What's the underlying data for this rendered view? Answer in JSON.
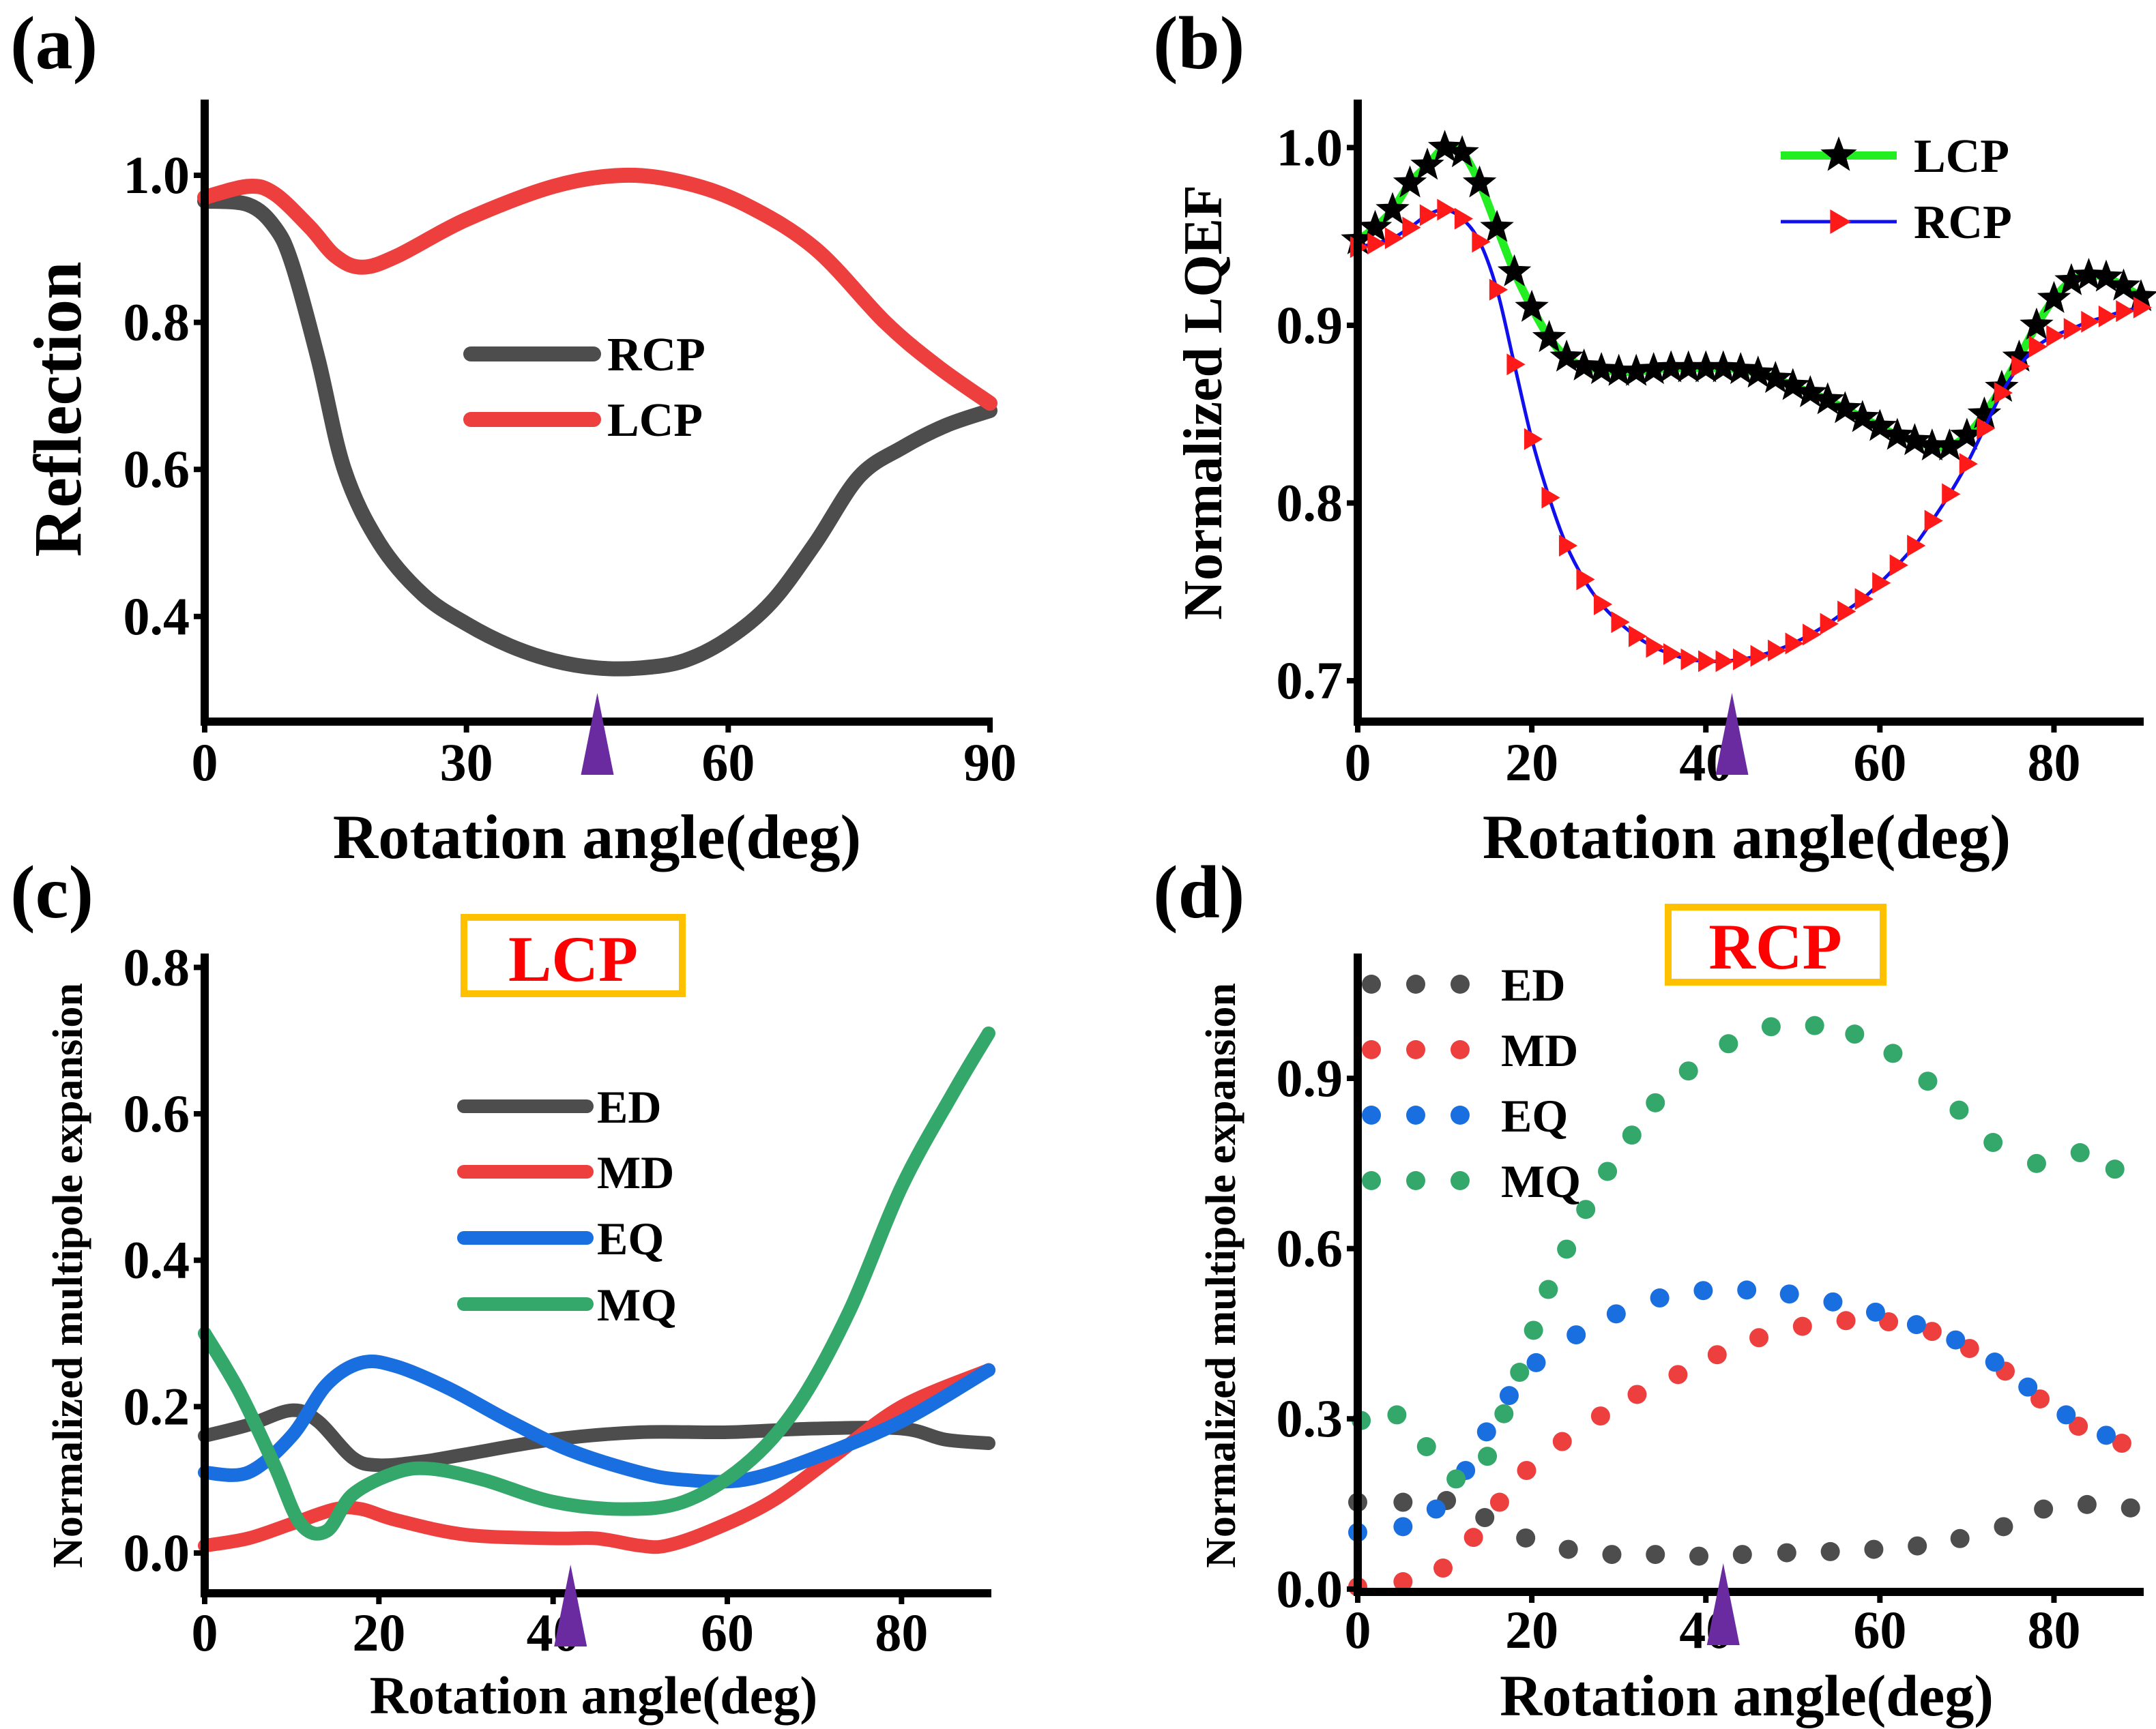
{
  "colors": {
    "gray": "#4d4d4d",
    "red": "#ee3f3f",
    "blue": "#1a6fe0",
    "green": "#34a86a",
    "lime": "#22ee22",
    "rcp_line_b": "#1010ee",
    "marker_red": "#ff1a1a",
    "arrow": "#6a2aa0",
    "box": "#ffc000",
    "box_text": "#ff0000"
  },
  "chart_data": [
    {
      "panel": "(a)",
      "type": "line",
      "xlabel": "Rotation angle(deg)",
      "ylabel": "Reflection",
      "xlim": [
        0,
        90
      ],
      "ylim": [
        0.257,
        1.103
      ],
      "xticks": [
        0,
        30,
        60,
        90
      ],
      "yticks": [
        0.4,
        0.6,
        0.8,
        1.0
      ],
      "xtick_labels": [
        "0",
        "30",
        "60",
        "90"
      ],
      "ytick_labels": [
        "0.4",
        "0.6",
        "0.8",
        "1.0"
      ],
      "legend_position": "center",
      "marker_angle": 45,
      "series": [
        {
          "name": "RCP",
          "color": "#4d4d4d",
          "x": [
            0,
            5,
            8,
            10,
            13,
            16,
            20,
            25,
            30,
            35,
            40,
            45,
            50,
            55,
            60,
            65,
            70,
            75,
            80,
            85,
            90
          ],
          "y": [
            0.965,
            0.96,
            0.93,
            0.88,
            0.75,
            0.6,
            0.5,
            0.43,
            0.39,
            0.36,
            0.34,
            0.33,
            0.33,
            0.34,
            0.37,
            0.42,
            0.5,
            0.59,
            0.63,
            0.66,
            0.68
          ]
        },
        {
          "name": "LCP",
          "color": "#ee3f3f",
          "x": [
            0,
            5,
            8,
            12,
            15,
            18,
            22,
            30,
            40,
            48,
            55,
            62,
            70,
            78,
            84,
            90
          ],
          "y": [
            0.97,
            0.985,
            0.975,
            0.93,
            0.89,
            0.875,
            0.89,
            0.94,
            0.985,
            1.0,
            0.99,
            0.96,
            0.9,
            0.8,
            0.74,
            0.69
          ]
        }
      ]
    },
    {
      "panel": "(b)",
      "type": "line",
      "xlabel": "Rotation angle(deg)",
      "ylabel": "Normalized LQEF",
      "xlim": [
        0,
        90
      ],
      "ylim": [
        0.677,
        1.027
      ],
      "xticks": [
        0,
        20,
        40,
        60,
        80
      ],
      "yticks": [
        0.7,
        0.8,
        0.9,
        1.0
      ],
      "xtick_labels": [
        "0",
        "20",
        "40",
        "60",
        "80"
      ],
      "ytick_labels": [
        "0.7",
        "0.8",
        "0.9",
        "1.0"
      ],
      "legend_position": "top-right",
      "marker_angle": 43,
      "series": [
        {
          "name": "LCP",
          "color": "#22ee22",
          "marker": "star",
          "x": [
            0,
            2,
            4,
            6,
            8,
            10,
            12,
            14,
            16,
            18,
            20,
            22,
            24,
            26,
            28,
            30,
            32,
            34,
            36,
            38,
            40,
            42,
            44,
            46,
            48,
            50,
            52,
            54,
            56,
            58,
            60,
            62,
            64,
            66,
            68,
            70,
            72,
            74,
            76,
            78,
            80,
            82,
            84,
            86,
            88,
            90
          ],
          "y": [
            0.948,
            0.955,
            0.965,
            0.98,
            0.99,
            1.0,
            0.997,
            0.98,
            0.955,
            0.93,
            0.91,
            0.893,
            0.882,
            0.877,
            0.875,
            0.874,
            0.874,
            0.875,
            0.876,
            0.876,
            0.876,
            0.876,
            0.875,
            0.873,
            0.87,
            0.866,
            0.862,
            0.858,
            0.853,
            0.848,
            0.843,
            0.838,
            0.835,
            0.832,
            0.832,
            0.838,
            0.85,
            0.865,
            0.882,
            0.9,
            0.915,
            0.925,
            0.928,
            0.927,
            0.922,
            0.916
          ]
        },
        {
          "name": "RCP",
          "color": "#1010ee",
          "marker": "triangle-right",
          "x": [
            0,
            2,
            4,
            6,
            8,
            10,
            12,
            14,
            16,
            18,
            20,
            22,
            24,
            26,
            28,
            30,
            32,
            34,
            36,
            38,
            40,
            42,
            44,
            46,
            48,
            50,
            52,
            54,
            56,
            58,
            60,
            62,
            64,
            66,
            68,
            70,
            72,
            74,
            76,
            78,
            80,
            82,
            84,
            86,
            88,
            90
          ],
          "y": [
            0.944,
            0.946,
            0.949,
            0.955,
            0.962,
            0.965,
            0.96,
            0.947,
            0.92,
            0.878,
            0.836,
            0.803,
            0.776,
            0.757,
            0.743,
            0.733,
            0.725,
            0.719,
            0.715,
            0.712,
            0.711,
            0.711,
            0.712,
            0.714,
            0.717,
            0.721,
            0.726,
            0.732,
            0.739,
            0.746,
            0.755,
            0.765,
            0.776,
            0.79,
            0.805,
            0.822,
            0.842,
            0.862,
            0.877,
            0.888,
            0.894,
            0.898,
            0.902,
            0.905,
            0.908,
            0.91
          ]
        }
      ]
    },
    {
      "panel": "(c)",
      "type": "line",
      "title": "LCP",
      "xlabel": "Rotation angle(deg)",
      "ylabel": "Normalized multipole expansion",
      "xlim": [
        0,
        90
      ],
      "ylim": [
        -0.055,
        0.819
      ],
      "xticks": [
        0,
        20,
        40,
        60,
        80
      ],
      "yticks": [
        0.0,
        0.2,
        0.4,
        0.6,
        0.8
      ],
      "xtick_labels": [
        "0",
        "20",
        "40",
        "60",
        "80"
      ],
      "ytick_labels": [
        "0.0",
        "0.2",
        "0.4",
        "0.6",
        "0.8"
      ],
      "legend_position": "center-left",
      "marker_angle": 42,
      "series": [
        {
          "name": "ED",
          "color": "#4d4d4d",
          "x": [
            0,
            5,
            10,
            13,
            17,
            20,
            25,
            30,
            40,
            50,
            60,
            70,
            80,
            85,
            90
          ],
          "y": [
            0.16,
            0.175,
            0.195,
            0.18,
            0.13,
            0.12,
            0.125,
            0.135,
            0.155,
            0.165,
            0.165,
            0.17,
            0.17,
            0.155,
            0.15
          ]
        },
        {
          "name": "MD",
          "color": "#ee3f3f",
          "x": [
            0,
            5,
            10,
            15,
            18,
            22,
            30,
            40,
            45,
            50,
            53,
            58,
            65,
            72,
            80,
            90
          ],
          "y": [
            0.01,
            0.02,
            0.04,
            0.06,
            0.06,
            0.045,
            0.025,
            0.02,
            0.02,
            0.01,
            0.01,
            0.03,
            0.07,
            0.13,
            0.2,
            0.25
          ]
        },
        {
          "name": "EQ",
          "color": "#1a6fe0",
          "x": [
            0,
            5,
            10,
            14,
            18,
            22,
            28,
            35,
            42,
            50,
            55,
            62,
            70,
            80,
            90
          ],
          "y": [
            0.11,
            0.11,
            0.16,
            0.23,
            0.26,
            0.255,
            0.225,
            0.18,
            0.14,
            0.11,
            0.1,
            0.1,
            0.13,
            0.18,
            0.25
          ]
        },
        {
          "name": "MQ",
          "color": "#34a86a",
          "x": [
            0,
            4,
            8,
            11,
            14,
            17,
            22,
            26,
            32,
            40,
            48,
            55,
            62,
            68,
            74,
            80,
            86,
            90
          ],
          "y": [
            0.3,
            0.22,
            0.12,
            0.04,
            0.03,
            0.08,
            0.11,
            0.115,
            0.1,
            0.07,
            0.06,
            0.07,
            0.12,
            0.2,
            0.33,
            0.5,
            0.63,
            0.71
          ]
        }
      ]
    },
    {
      "panel": "(d)",
      "type": "scatter",
      "title": "RCP",
      "xlabel": "Rotation angle(deg)",
      "ylabel": "Normalized multipole expansion",
      "xlim": [
        0,
        90
      ],
      "ylim": [
        -0.005,
        1.12
      ],
      "xticks": [
        0,
        20,
        40,
        60,
        80
      ],
      "yticks": [
        0.0,
        0.3,
        0.6,
        0.9
      ],
      "xtick_labels": [
        "0",
        "20",
        "40",
        "60",
        "80"
      ],
      "ytick_labels": [
        "0.0",
        "0.3",
        "0.6",
        "0.9"
      ],
      "legend_position": "top-left",
      "marker_angle": 42,
      "series": [
        {
          "name": "ED",
          "color": "#4d4d4d",
          "x": [
            0,
            5.2,
            10.2,
            14.6,
            19.3,
            24.2,
            29.2,
            34.2,
            39.2,
            44.2,
            49.3,
            54.3,
            59.3,
            64.3,
            69.2,
            74.2,
            78.8,
            83.8,
            88.8
          ],
          "y": [
            0.153,
            0.153,
            0.156,
            0.126,
            0.09,
            0.07,
            0.061,
            0.061,
            0.058,
            0.061,
            0.064,
            0.066,
            0.07,
            0.076,
            0.089,
            0.11,
            0.141,
            0.149,
            0.143
          ]
        },
        {
          "name": "MD",
          "color": "#ee3f3f",
          "x": [
            0,
            5.2,
            9.8,
            13.3,
            16.3,
            19.4,
            23.5,
            27.9,
            32.1,
            36.8,
            41.3,
            46.1,
            51.1,
            56.1,
            61,
            66,
            70.3,
            74.4,
            78.4,
            82.8,
            87.8
          ],
          "y": [
            0.004,
            0.013,
            0.037,
            0.091,
            0.153,
            0.209,
            0.26,
            0.305,
            0.343,
            0.378,
            0.413,
            0.443,
            0.463,
            0.473,
            0.471,
            0.454,
            0.424,
            0.384,
            0.335,
            0.287,
            0.257
          ]
        },
        {
          "name": "EQ",
          "color": "#1a6fe0",
          "x": [
            0,
            5.2,
            9,
            12.4,
            14.8,
            17.4,
            20.5,
            25.1,
            29.7,
            34.7,
            39.7,
            44.7,
            49.6,
            54.6,
            59.5,
            64.2,
            68.7,
            73.2,
            77,
            81.4,
            86
          ],
          "y": [
            0.1,
            0.11,
            0.141,
            0.209,
            0.277,
            0.341,
            0.399,
            0.448,
            0.485,
            0.513,
            0.526,
            0.527,
            0.52,
            0.506,
            0.488,
            0.466,
            0.439,
            0.4,
            0.356,
            0.307,
            0.271
          ]
        },
        {
          "name": "MQ",
          "color": "#34a86a",
          "x": [
            0.4,
            4.5,
            7.9,
            11.3,
            14.9,
            16.8,
            18.6,
            20.2,
            21.9,
            24,
            26.2,
            28.7,
            31.5,
            34.2,
            38,
            42.6,
            47.5,
            52.5,
            57.1,
            61.5,
            65.5,
            69.1,
            73,
            78,
            83,
            87
          ],
          "y": [
            0.297,
            0.307,
            0.251,
            0.194,
            0.234,
            0.309,
            0.382,
            0.456,
            0.528,
            0.599,
            0.669,
            0.736,
            0.8,
            0.857,
            0.913,
            0.961,
            0.991,
            0.993,
            0.978,
            0.944,
            0.895,
            0.844,
            0.787,
            0.75,
            0.769,
            0.74
          ]
        }
      ]
    }
  ]
}
